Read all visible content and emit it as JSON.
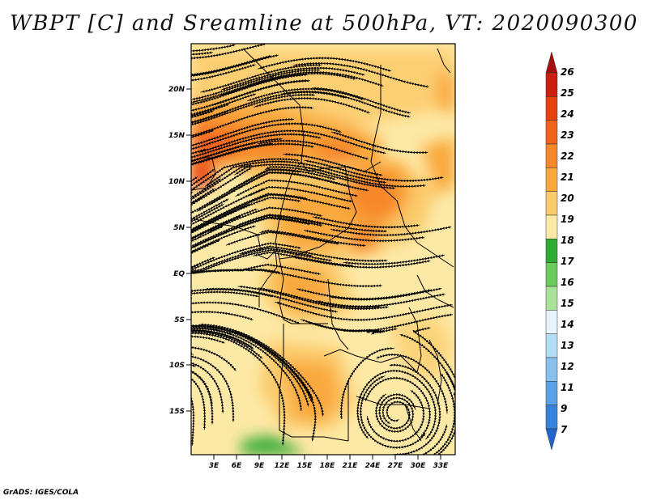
{
  "title": "WBPT [C] and Sreamline at 500hPa, VT: 2020090300",
  "credit": "GrADS: IGES/COLA",
  "map": {
    "lat_labels": [
      "20N",
      "15N",
      "10N",
      "5N",
      "EQ",
      "5S",
      "10S",
      "15S"
    ],
    "lon_labels": [
      "3E",
      "6E",
      "9E",
      "12E",
      "15E",
      "18E",
      "21E",
      "24E",
      "27E",
      "30E",
      "33E"
    ]
  },
  "colorbar": {
    "labels": [
      "26",
      "25",
      "24",
      "23",
      "22",
      "21",
      "20",
      "19",
      "18",
      "17",
      "16",
      "15",
      "14",
      "13",
      "12",
      "11",
      "9",
      "7"
    ],
    "colors": [
      "#a50f0f",
      "#cc1f0f",
      "#e8430e",
      "#f2621a",
      "#f7882a",
      "#f9a93c",
      "#fbca6a",
      "#fde9a6",
      "#2eaa35",
      "#6bcc5e",
      "#abe29a",
      "#e6f5fb",
      "#b3dcf6",
      "#86c1ef",
      "#5aa2e6",
      "#3783d9",
      "#2164cd"
    ]
  }
}
